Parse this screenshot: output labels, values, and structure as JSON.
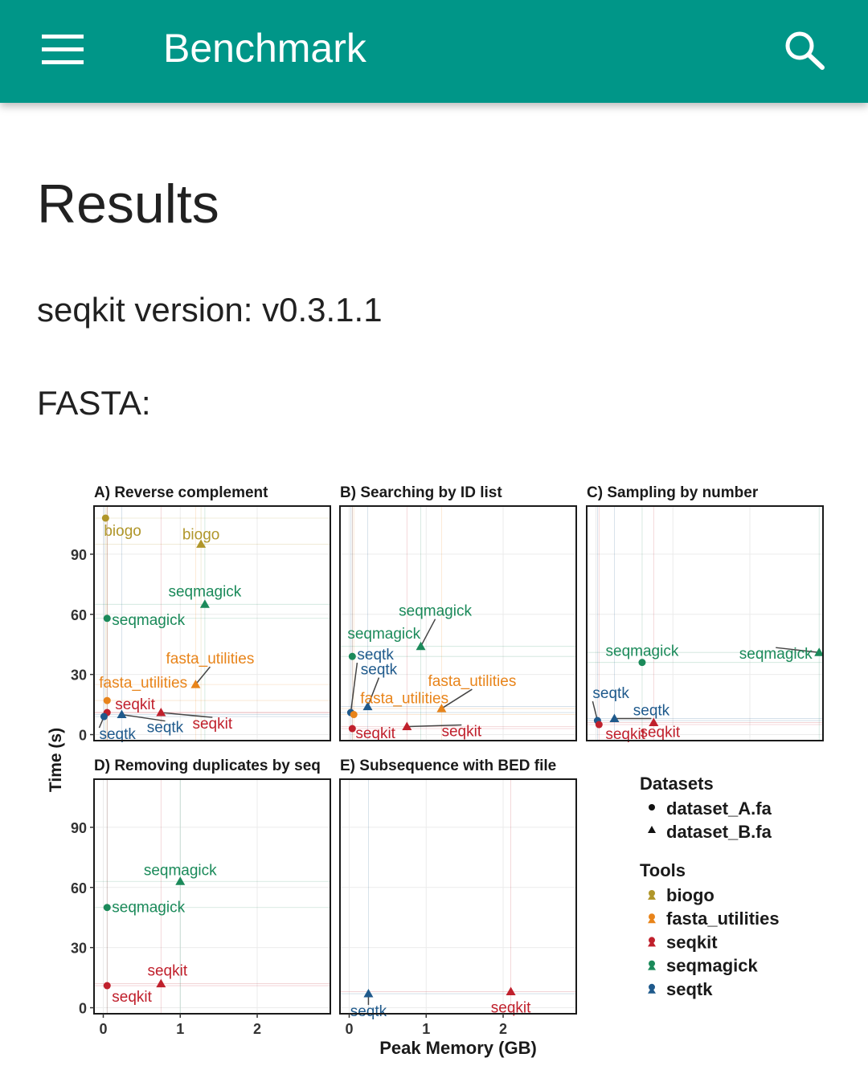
{
  "app_bar": {
    "title": "Benchmark",
    "background": "#009688",
    "menu_icon": "hamburger-menu-icon",
    "search_icon": "search-icon"
  },
  "content": {
    "heading": "Results",
    "version_line": "seqkit version: v0.3.1.1",
    "section": "FASTA:"
  },
  "chart_data": {
    "type": "scatter",
    "ylabel": "Time (s)",
    "xlabel": "Peak Memory (GB)",
    "x_ticks": [
      "0",
      "1",
      "2"
    ],
    "y_ticks": [
      "0",
      "30",
      "60",
      "90"
    ],
    "xlim": [
      -0.12,
      2.95
    ],
    "ylim": [
      -3,
      114
    ],
    "colors": {
      "biogo": "#b0962a",
      "fasta_utilities": "#e8841a",
      "seqkit": "#c0202c",
      "seqmagick": "#1b8a5a",
      "seqtk": "#1f5a8c"
    },
    "legend": {
      "datasets_title": "Datasets",
      "datasets": [
        {
          "label": "dataset_A.fa",
          "shape": "circle"
        },
        {
          "label": "dataset_B.fa",
          "shape": "triangle"
        }
      ],
      "tools_title": "Tools",
      "tools": [
        "biogo",
        "fasta_utilities",
        "seqkit",
        "seqmagick",
        "seqtk"
      ]
    },
    "panels": [
      {
        "title": "A) Reverse complement",
        "points": [
          {
            "tool": "biogo",
            "dataset": "dataset_A.fa",
            "x": 0.03,
            "y": 108,
            "label": "biogo"
          },
          {
            "tool": "biogo",
            "dataset": "dataset_B.fa",
            "x": 1.27,
            "y": 95,
            "label": "biogo"
          },
          {
            "tool": "seqmagick",
            "dataset": "dataset_A.fa",
            "x": 0.05,
            "y": 58,
            "label": "seqmagick"
          },
          {
            "tool": "seqmagick",
            "dataset": "dataset_B.fa",
            "x": 1.32,
            "y": 65,
            "label": "seqmagick"
          },
          {
            "tool": "fasta_utilities",
            "dataset": "dataset_A.fa",
            "x": 0.05,
            "y": 17,
            "label": "fasta_utilities"
          },
          {
            "tool": "fasta_utilities",
            "dataset": "dataset_B.fa",
            "x": 1.2,
            "y": 25,
            "label": "fasta_utilities"
          },
          {
            "tool": "seqkit",
            "dataset": "dataset_A.fa",
            "x": 0.05,
            "y": 11,
            "label": "seqkit"
          },
          {
            "tool": "seqkit",
            "dataset": "dataset_B.fa",
            "x": 0.75,
            "y": 11,
            "label": "seqkit"
          },
          {
            "tool": "seqtk",
            "dataset": "dataset_A.fa",
            "x": 0.01,
            "y": 9,
            "label": "seqtk"
          },
          {
            "tool": "seqtk",
            "dataset": "dataset_B.fa",
            "x": 0.24,
            "y": 10,
            "label": "seqtk"
          }
        ]
      },
      {
        "title": "B) Searching by ID list",
        "points": [
          {
            "tool": "seqmagick",
            "dataset": "dataset_A.fa",
            "x": 0.04,
            "y": 39,
            "label": "seqmagick"
          },
          {
            "tool": "seqmagick",
            "dataset": "dataset_B.fa",
            "x": 0.93,
            "y": 44,
            "label": "seqmagick"
          },
          {
            "tool": "seqtk",
            "dataset": "dataset_A.fa",
            "x": 0.02,
            "y": 11,
            "label": "seqtk"
          },
          {
            "tool": "seqtk",
            "dataset": "dataset_B.fa",
            "x": 0.24,
            "y": 14,
            "label": "seqtk"
          },
          {
            "tool": "fasta_utilities",
            "dataset": "dataset_A.fa",
            "x": 0.06,
            "y": 10,
            "label": "fasta_utilities"
          },
          {
            "tool": "fasta_utilities",
            "dataset": "dataset_B.fa",
            "x": 1.2,
            "y": 13,
            "label": "fasta_utilities"
          },
          {
            "tool": "seqkit",
            "dataset": "dataset_A.fa",
            "x": 0.04,
            "y": 3,
            "label": "seqkit"
          },
          {
            "tool": "seqkit",
            "dataset": "dataset_B.fa",
            "x": 0.75,
            "y": 4,
            "label": "seqkit"
          }
        ]
      },
      {
        "title": "C) Sampling by number",
        "points": [
          {
            "tool": "seqmagick",
            "dataset": "dataset_A.fa",
            "x": 0.6,
            "y": 36,
            "label": "seqmagick"
          },
          {
            "tool": "seqmagick",
            "dataset": "dataset_B.fa",
            "x": 2.9,
            "y": 41,
            "label": "seqmagick"
          },
          {
            "tool": "seqtk",
            "dataset": "dataset_A.fa",
            "x": 0.02,
            "y": 7,
            "label": "seqtk"
          },
          {
            "tool": "seqtk",
            "dataset": "dataset_B.fa",
            "x": 0.24,
            "y": 8,
            "label": "seqtk"
          },
          {
            "tool": "seqkit",
            "dataset": "dataset_A.fa",
            "x": 0.04,
            "y": 5,
            "label": "seqkit"
          },
          {
            "tool": "seqkit",
            "dataset": "dataset_B.fa",
            "x": 0.75,
            "y": 6,
            "label": "seqkit"
          }
        ]
      },
      {
        "title": "D) Removing duplicates by seq",
        "points": [
          {
            "tool": "seqmagick",
            "dataset": "dataset_A.fa",
            "x": 0.05,
            "y": 50,
            "label": "seqmagick"
          },
          {
            "tool": "seqmagick",
            "dataset": "dataset_B.fa",
            "x": 1.0,
            "y": 63,
            "label": "seqmagick"
          },
          {
            "tool": "seqkit",
            "dataset": "dataset_A.fa",
            "x": 0.05,
            "y": 11,
            "label": "seqkit"
          },
          {
            "tool": "seqkit",
            "dataset": "dataset_B.fa",
            "x": 0.75,
            "y": 12,
            "label": "seqkit"
          }
        ]
      },
      {
        "title": "E) Subsequence with BED file",
        "points": [
          {
            "tool": "seqtk",
            "dataset": "dataset_B.fa",
            "x": 0.25,
            "y": 7,
            "label": "seqtk"
          },
          {
            "tool": "seqkit",
            "dataset": "dataset_B.fa",
            "x": 2.1,
            "y": 8,
            "label": "seqkit"
          }
        ]
      }
    ]
  }
}
